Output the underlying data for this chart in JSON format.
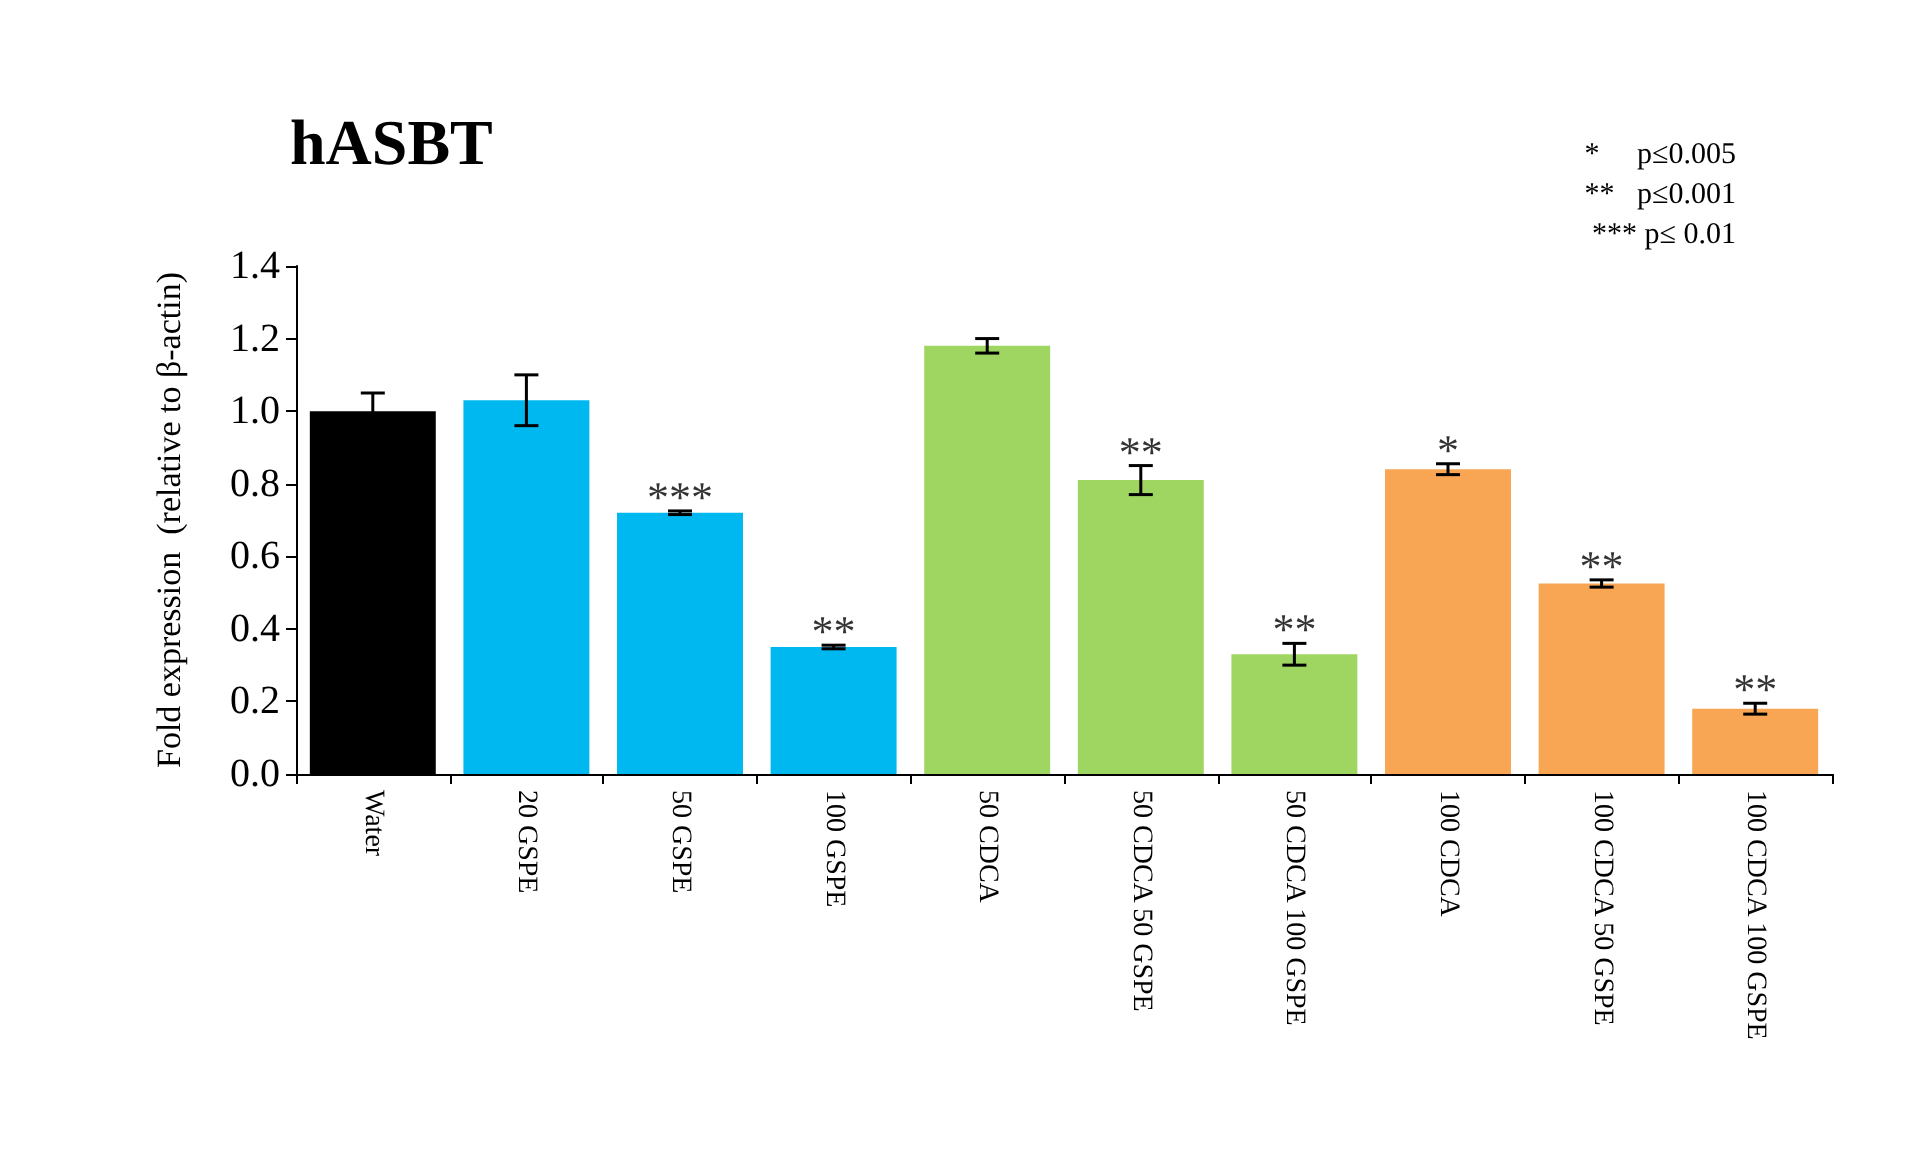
{
  "chart_data": {
    "type": "bar",
    "title": "hASBT",
    "ylabel": "Fold expression  (relative to β-actin)",
    "categories": [
      "Water",
      "20 GSPE",
      "50 GSPE",
      "100 GSPE",
      "50 CDCA",
      "50 CDCA 50 GSPE",
      "50 CDCA 100 GSPE",
      "100 CDCA",
      "100 CDCA 50 GSPE",
      "100 CDCA 100 GSPE"
    ],
    "values": [
      1.0,
      1.03,
      0.72,
      0.35,
      1.18,
      0.81,
      0.33,
      0.84,
      0.525,
      0.18
    ],
    "errors": [
      0.05,
      0.07,
      0.005,
      0.005,
      0.02,
      0.04,
      0.03,
      0.015,
      0.01,
      0.015
    ],
    "colors": [
      "#000000",
      "#00b8f0",
      "#00b8f0",
      "#00b8f0",
      "#9fd561",
      "#9fd561",
      "#9fd561",
      "#f8a554",
      "#f8a554",
      "#f8a554"
    ],
    "ylim": [
      0,
      1.4
    ],
    "yticks": [
      {
        "value": 0,
        "label": "0.0"
      },
      {
        "value": 0.2,
        "label": "0.2"
      },
      {
        "value": 0.4,
        "label": "0.4"
      },
      {
        "value": 0.6,
        "label": "0.6"
      },
      {
        "value": 0.8,
        "label": "0.8"
      },
      {
        "value": 1.0,
        "label": "1.0"
      },
      {
        "value": 1.2,
        "label": "1.2"
      },
      {
        "value": 1.4,
        "label": "1.4"
      }
    ],
    "annotations": [
      {
        "text": "***",
        "x": "50 GSPE",
        "y": 0.725
      },
      {
        "text": "**",
        "x": "100 GSPE",
        "y": 0.355
      },
      {
        "text": "**",
        "x": "50 CDCA 50 GSPE",
        "y": 0.85
      },
      {
        "text": "**",
        "x": "50 CDCA 100 GSPE",
        "y": 0.36
      },
      {
        "text": "*",
        "x": "100 CDCA",
        "y": 0.855
      },
      {
        "text": "**",
        "x": "100 CDCA 50 GSPE",
        "y": 0.535
      },
      {
        "text": "**",
        "x": "100 CDCA 100 GSPE",
        "y": 0.195
      },
      "*     p≤0.005",
      "**   p≤0.001",
      "*** p≤ 0.01"
    ]
  }
}
